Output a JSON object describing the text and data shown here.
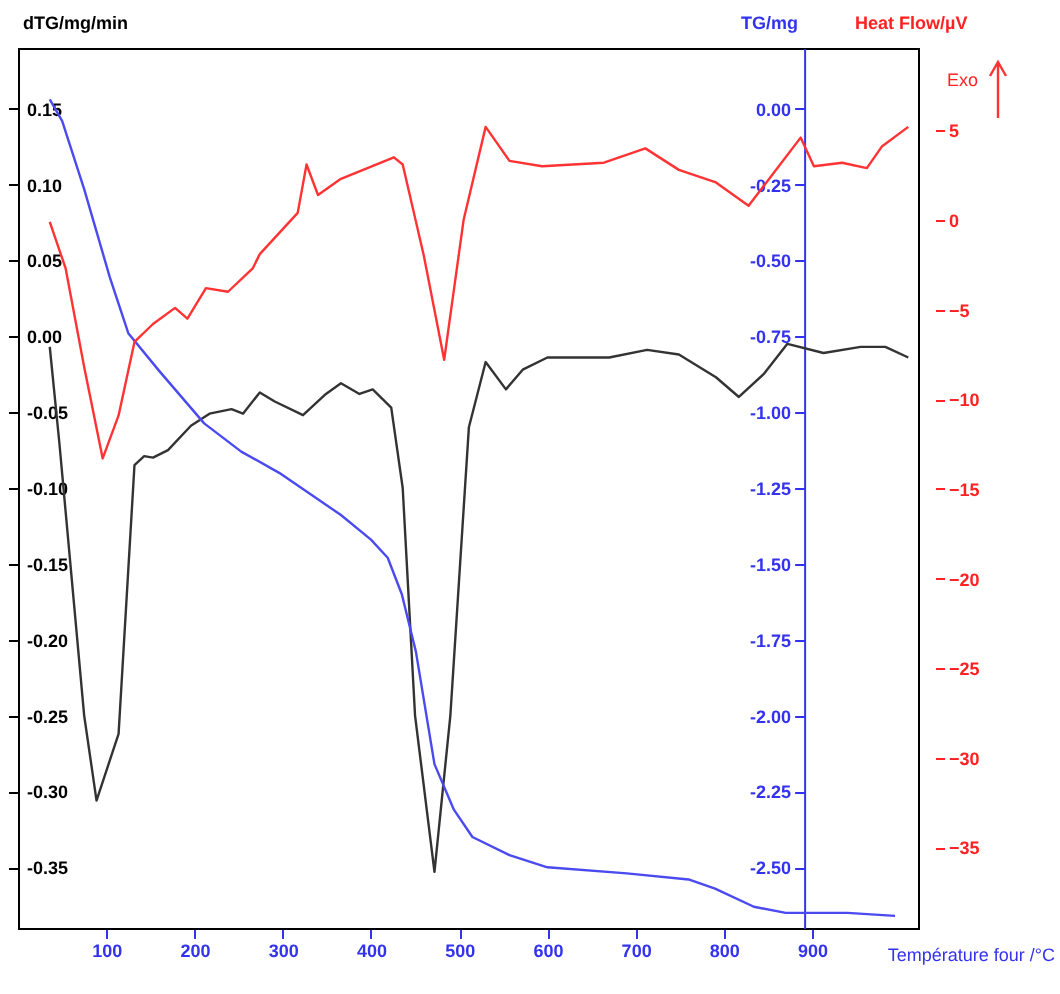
{
  "chart_data": {
    "type": "line",
    "xlabel": "Température four /°C",
    "ylabel": "dTG/mg/min",
    "y2label": "TG/mg",
    "y3label": "Heat Flow/µV",
    "annotations": [
      "Exo"
    ],
    "xlim": [
      0,
      1020
    ],
    "xticks": [
      100,
      200,
      300,
      400,
      500,
      600,
      700,
      800,
      900
    ],
    "ylim": [
      -0.39,
      0.19
    ],
    "yticks": [
      {
        "value": -0.35,
        "label": "-0.35"
      },
      {
        "value": -0.3,
        "label": "-0.30"
      },
      {
        "value": -0.25,
        "label": "-0.25"
      },
      {
        "value": -0.2,
        "label": "-0.20"
      },
      {
        "value": -0.15,
        "label": "-0.15"
      },
      {
        "value": -0.1,
        "label": "-0.10"
      },
      {
        "value": -0.05,
        "label": "-0.05"
      },
      {
        "value": 0,
        "label": "0.00"
      },
      {
        "value": 0.05,
        "label": "0.05"
      },
      {
        "value": 0.1,
        "label": "0.10"
      },
      {
        "value": 0.15,
        "label": "0.15"
      }
    ],
    "y2lim": [
      -2.7,
      0.2
    ],
    "y2ticks": [
      {
        "value": -2.5,
        "label": "-2.50"
      },
      {
        "value": -2.25,
        "label": "-2.25"
      },
      {
        "value": -2,
        "label": "-2.00"
      },
      {
        "value": -1.75,
        "label": "-1.75"
      },
      {
        "value": -1.5,
        "label": "-1.50"
      },
      {
        "value": -1.25,
        "label": "-1.25"
      },
      {
        "value": -1,
        "label": "-1.00"
      },
      {
        "value": -0.75,
        "label": "-0.75"
      },
      {
        "value": -0.5,
        "label": "-0.50"
      },
      {
        "value": -0.25,
        "label": "-0.25"
      },
      {
        "value": 0,
        "label": "0.00"
      }
    ],
    "y3lim": [
      -39.5,
      9.6
    ],
    "y3ticks": [
      -35,
      -30,
      -25,
      -20,
      -15,
      -10,
      -5,
      0,
      5
    ],
    "grid": false,
    "series": [
      {
        "color": "#333333",
        "x": [
          36,
          47,
          75,
          89,
          114,
          132,
          143,
          153,
          170,
          196,
          217,
          242,
          255,
          274,
          291,
          323,
          349,
          366,
          387,
          402,
          423,
          436,
          450,
          472,
          490,
          511,
          530,
          553,
          572,
          600,
          670,
          713,
          749,
          791,
          817,
          845,
          872,
          913,
          955,
          983,
          1009
        ],
        "values": [
          -0.007,
          -0.071,
          -0.25,
          -0.306,
          -0.262,
          -0.085,
          -0.079,
          -0.08,
          -0.075,
          -0.059,
          -0.051,
          -0.048,
          -0.051,
          -0.037,
          -0.043,
          -0.052,
          -0.038,
          -0.031,
          -0.038,
          -0.035,
          -0.047,
          -0.1,
          -0.25,
          -0.353,
          -0.25,
          -0.06,
          -0.017,
          -0.035,
          -0.022,
          -0.014,
          -0.014,
          -0.009,
          -0.012,
          -0.027,
          -0.04,
          -0.025,
          -0.005,
          -0.011,
          -0.007,
          -0.007,
          -0.014
        ]
      },
      {
        "color": "#4a4af0",
        "axis": "y2",
        "x": [
          36,
          50,
          75,
          104,
          125,
          160,
          211,
          253,
          296,
          366,
          400,
          419,
          435,
          451,
          472,
          494,
          515,
          557,
          600,
          690,
          760,
          790,
          834,
          870,
          940,
          994
        ],
        "values": [
          0.031,
          -0.04,
          -0.265,
          -0.555,
          -0.74,
          -0.864,
          -1.037,
          -1.13,
          -1.2,
          -1.339,
          -1.42,
          -1.48,
          -1.6,
          -1.79,
          -2.16,
          -2.31,
          -2.4,
          -2.46,
          -2.5,
          -2.52,
          -2.54,
          -2.57,
          -2.63,
          -2.65,
          -2.65,
          -2.66
        ]
      },
      {
        "color": "#ff3333",
        "axis": "y3",
        "x": [
          36,
          54,
          75,
          96,
          114,
          132,
          153,
          178,
          192,
          213,
          238,
          266,
          274,
          317,
          327,
          340,
          366,
          426,
          436,
          460,
          483,
          505,
          530,
          557,
          594,
          664,
          711,
          749,
          791,
          828,
          887,
          902,
          934,
          962,
          979,
          1009
        ],
        "values": [
          -0.1,
          -2.7,
          -8.2,
          -13.3,
          -10.9,
          -6.8,
          -5.8,
          -4.9,
          -5.5,
          -3.8,
          -4.0,
          -2.7,
          -1.9,
          0.4,
          3.1,
          1.4,
          2.3,
          3.5,
          3.1,
          -2,
          -7.8,
          0,
          5.2,
          3.3,
          3.0,
          3.2,
          4.0,
          2.8,
          2.1,
          0.8,
          4.6,
          3.0,
          3.2,
          2.9,
          4.1,
          5.2
        ]
      }
    ]
  }
}
